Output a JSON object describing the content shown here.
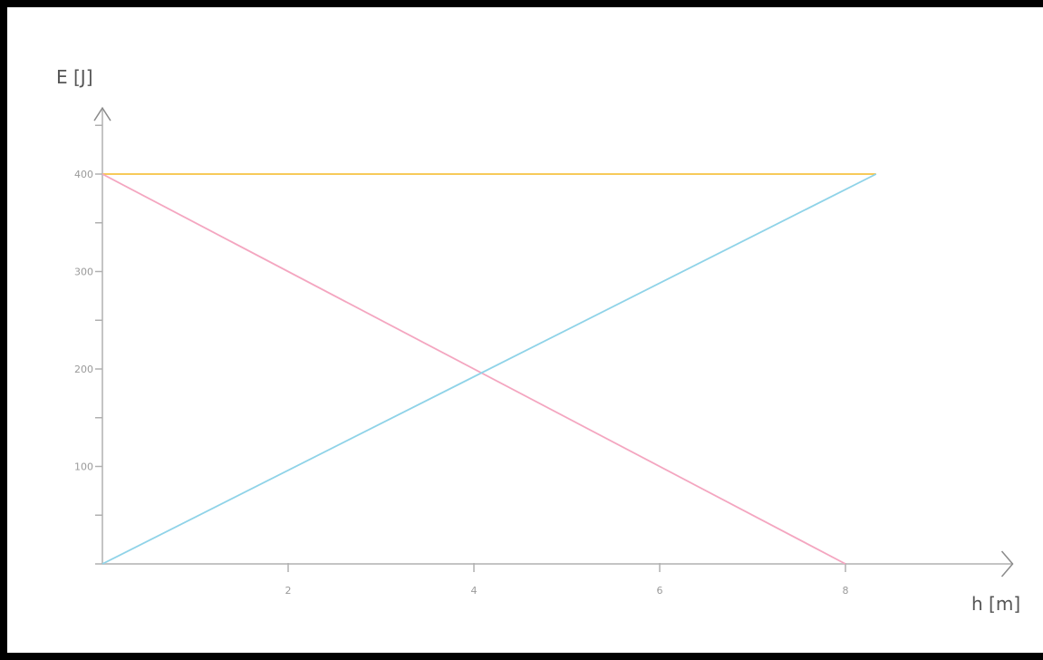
{
  "chart_data": {
    "type": "line",
    "title": "",
    "xlabel": "h [m]",
    "ylabel": "E [J]",
    "xlim": [
      0,
      9.8
    ],
    "ylim": [
      0,
      465
    ],
    "x_ticks": [
      2,
      4,
      6,
      8
    ],
    "y_ticks": [
      100,
      200,
      300,
      400
    ],
    "y_minor_ticks": [
      50,
      150,
      250,
      350,
      450
    ],
    "grid": false,
    "legend": "none",
    "series": [
      {
        "color": "#f6c343",
        "points": [
          [
            0,
            400
          ],
          [
            8.33,
            400
          ]
        ]
      },
      {
        "color": "#f4a6c0",
        "points": [
          [
            0,
            400
          ],
          [
            8,
            0
          ]
        ]
      },
      {
        "color": "#8fd3e8",
        "points": [
          [
            0,
            0
          ],
          [
            8.33,
            400
          ]
        ]
      }
    ]
  }
}
